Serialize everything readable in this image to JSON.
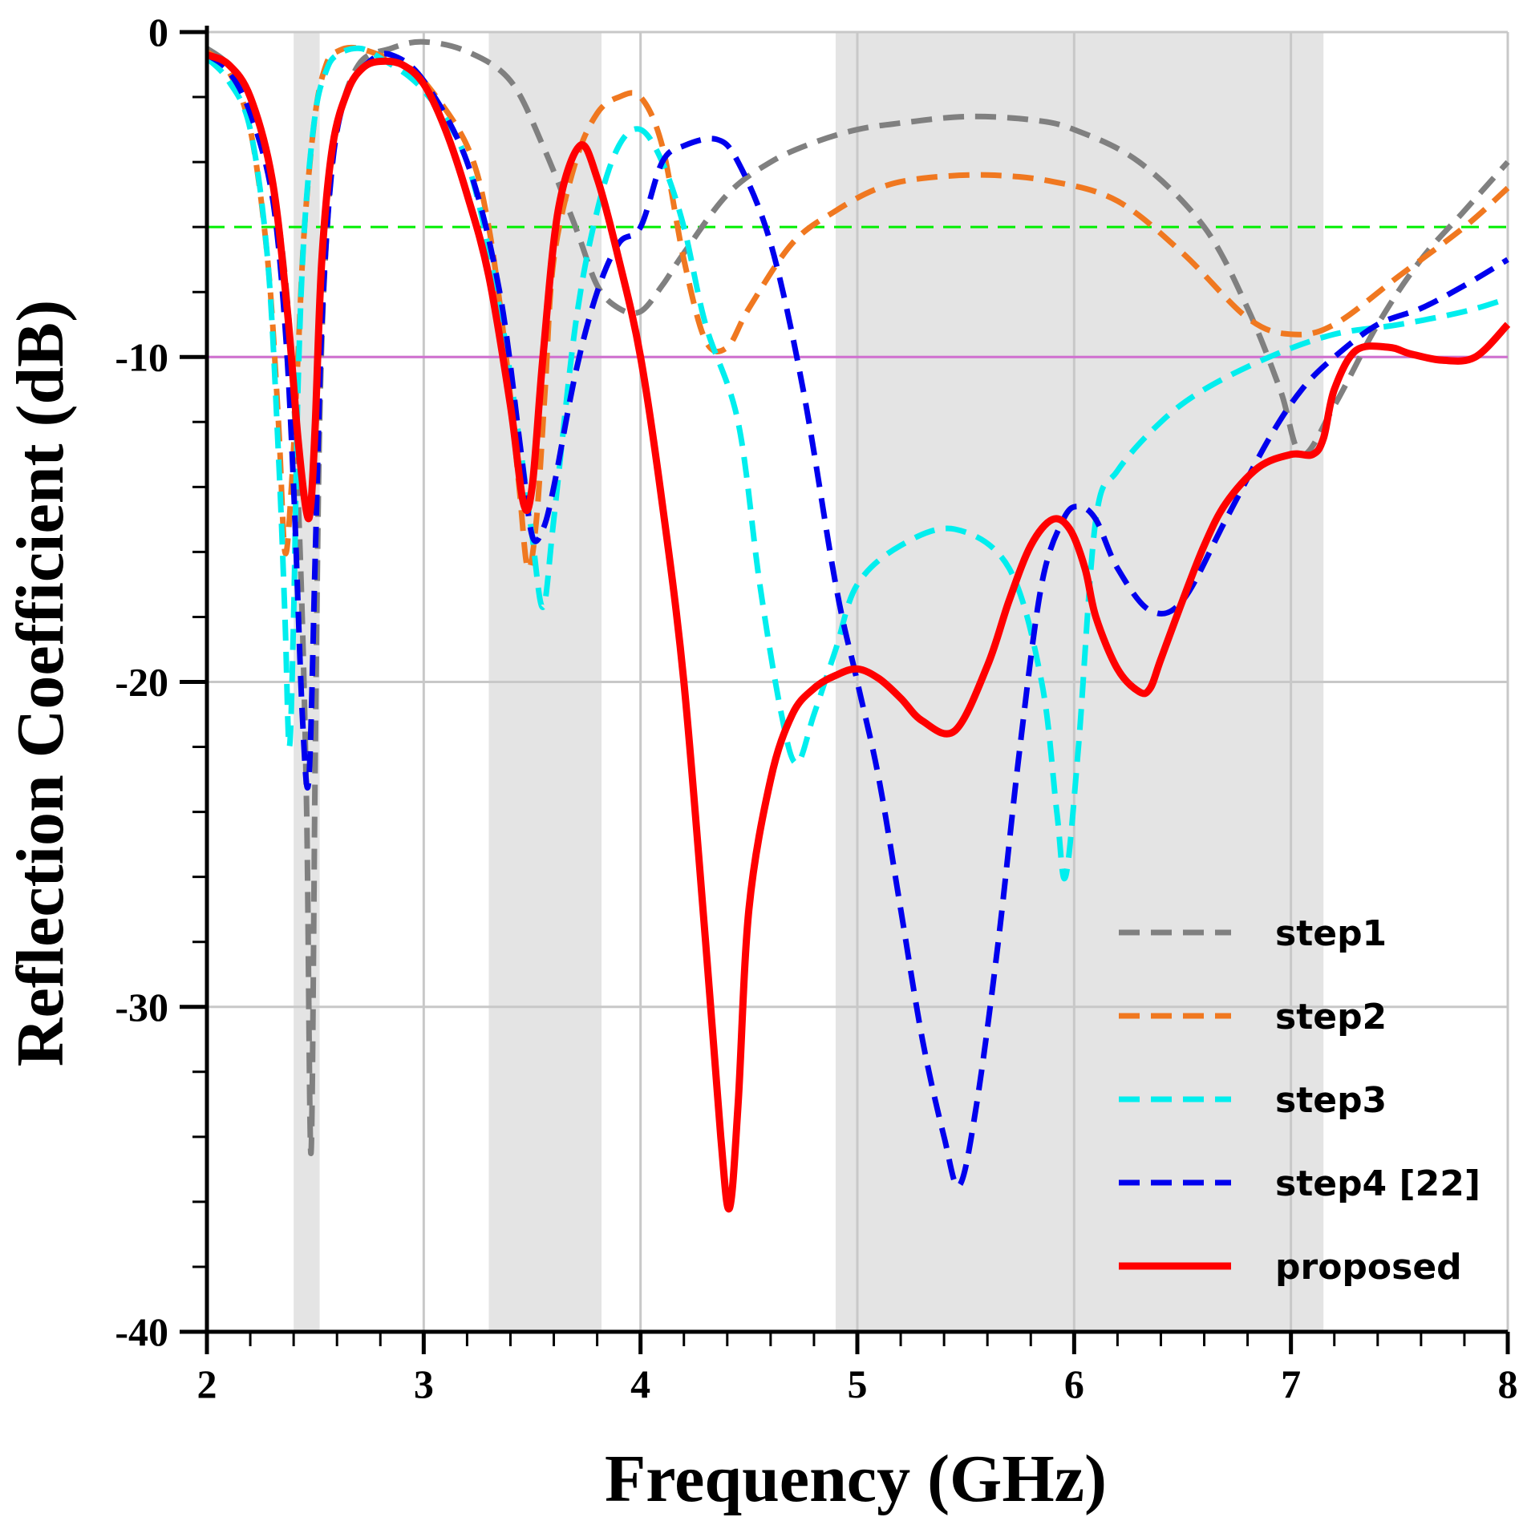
{
  "chart_data": {
    "type": "line",
    "title": "",
    "xlabel": "Frequency (GHz)",
    "ylabel": "Reflection Coefficient (dB)",
    "xlim": [
      2,
      8
    ],
    "ylim": [
      -40,
      0
    ],
    "xticks": [
      2,
      3,
      4,
      5,
      6,
      7,
      8
    ],
    "xtick_labels": [
      "2",
      "3",
      "4",
      "5",
      "6",
      "7",
      "8"
    ],
    "yticks": [
      0,
      -10,
      -20,
      -30,
      -40
    ],
    "ytick_labels": [
      "0",
      "-10",
      "-20",
      "-30",
      "-40"
    ],
    "grid": true,
    "legend_position": "bottom-right",
    "shaded_bands_ghz": [
      [
        2.4,
        2.52
      ],
      [
        3.3,
        3.82
      ],
      [
        4.9,
        7.15
      ]
    ],
    "reference_lines": [
      {
        "name": "-6 dB reference",
        "value": -6,
        "color": "#00ee00",
        "dash": true
      },
      {
        "name": "-10 dB reference",
        "value": -10,
        "color": "#d070d0",
        "dash": false
      }
    ],
    "series": [
      {
        "name": "step1",
        "color": "#808080",
        "dash": true,
        "x": [
          2.0,
          2.1,
          2.2,
          2.3,
          2.38,
          2.43,
          2.46,
          2.48,
          2.5,
          2.52,
          2.55,
          2.6,
          2.7,
          2.85,
          3.0,
          3.2,
          3.4,
          3.55,
          3.7,
          3.8,
          3.9,
          4.0,
          4.1,
          4.2,
          4.4,
          4.6,
          4.8,
          5.0,
          5.2,
          5.5,
          5.8,
          6.0,
          6.3,
          6.6,
          6.8,
          6.95,
          7.05,
          7.2,
          7.4,
          7.6,
          7.8,
          8.0
        ],
        "y": [
          -0.5,
          -1.0,
          -2.0,
          -4.5,
          -9.0,
          -16.0,
          -24.0,
          -34.5,
          -22.0,
          -12.0,
          -6.5,
          -3.0,
          -1.0,
          -0.5,
          -0.3,
          -0.6,
          -1.5,
          -3.5,
          -6.0,
          -7.8,
          -8.5,
          -8.6,
          -7.8,
          -6.8,
          -5.0,
          -4.0,
          -3.4,
          -3.0,
          -2.8,
          -2.6,
          -2.7,
          -3.0,
          -4.0,
          -6.0,
          -8.5,
          -11.0,
          -13.0,
          -11.5,
          -9.0,
          -7.0,
          -5.5,
          -4.0
        ]
      },
      {
        "name": "step2",
        "color": "#f07820",
        "dash": true,
        "x": [
          2.0,
          2.1,
          2.2,
          2.28,
          2.33,
          2.36,
          2.39,
          2.42,
          2.45,
          2.5,
          2.55,
          2.6,
          2.7,
          2.9,
          3.0,
          3.2,
          3.3,
          3.38,
          3.44,
          3.48,
          3.52,
          3.56,
          3.6,
          3.7,
          3.8,
          3.9,
          4.0,
          4.1,
          4.2,
          4.3,
          4.4,
          4.5,
          4.7,
          4.9,
          5.1,
          5.3,
          5.6,
          5.9,
          6.2,
          6.5,
          6.8,
          7.0,
          7.2,
          7.5,
          7.8,
          8.0
        ],
        "y": [
          -0.6,
          -1.2,
          -3.0,
          -7.0,
          -12.0,
          -16.0,
          -14.0,
          -10.0,
          -6.0,
          -2.5,
          -1.0,
          -0.6,
          -0.5,
          -1.0,
          -1.5,
          -3.5,
          -6.0,
          -10.0,
          -14.0,
          -16.5,
          -15.0,
          -11.0,
          -7.0,
          -4.0,
          -2.5,
          -2.0,
          -2.0,
          -3.5,
          -7.0,
          -9.5,
          -9.7,
          -8.5,
          -6.5,
          -5.5,
          -4.8,
          -4.5,
          -4.4,
          -4.6,
          -5.2,
          -6.8,
          -8.8,
          -9.3,
          -9.0,
          -7.5,
          -6.0,
          -4.8
        ]
      },
      {
        "name": "step3",
        "color": "#00eeee",
        "dash": true,
        "x": [
          2.0,
          2.1,
          2.2,
          2.28,
          2.33,
          2.36,
          2.38,
          2.4,
          2.42,
          2.45,
          2.5,
          2.55,
          2.6,
          2.7,
          2.8,
          3.0,
          3.2,
          3.35,
          3.45,
          3.5,
          3.55,
          3.6,
          3.7,
          3.8,
          3.9,
          4.0,
          4.1,
          4.2,
          4.3,
          4.45,
          4.55,
          4.65,
          4.72,
          4.8,
          4.9,
          5.0,
          5.2,
          5.45,
          5.7,
          5.85,
          5.92,
          5.96,
          6.02,
          6.1,
          6.2,
          6.4,
          6.6,
          6.9,
          7.2,
          7.5,
          7.8,
          8.0
        ],
        "y": [
          -0.8,
          -1.5,
          -3.0,
          -7.0,
          -13.0,
          -18.0,
          -22.0,
          -18.0,
          -11.0,
          -6.0,
          -2.5,
          -1.2,
          -0.7,
          -0.5,
          -0.8,
          -1.8,
          -4.0,
          -8.5,
          -13.0,
          -15.5,
          -17.7,
          -15.0,
          -9.0,
          -5.5,
          -3.5,
          -3.0,
          -4.0,
          -6.0,
          -9.0,
          -12.0,
          -17.0,
          -21.0,
          -22.5,
          -21.0,
          -19.0,
          -17.0,
          -15.8,
          -15.3,
          -16.5,
          -20.0,
          -24.0,
          -26.0,
          -22.0,
          -15.0,
          -13.5,
          -12.0,
          -11.0,
          -10.0,
          -9.3,
          -9.0,
          -8.6,
          -8.2
        ]
      },
      {
        "name": "step4 [22]",
        "color": "#0000ee",
        "dash": true,
        "x": [
          2.0,
          2.1,
          2.2,
          2.3,
          2.36,
          2.4,
          2.44,
          2.47,
          2.5,
          2.53,
          2.58,
          2.65,
          2.75,
          2.85,
          3.0,
          3.2,
          3.35,
          3.45,
          3.5,
          3.55,
          3.6,
          3.7,
          3.8,
          3.9,
          4.0,
          4.1,
          4.2,
          4.35,
          4.45,
          4.6,
          4.75,
          4.9,
          5.0,
          5.1,
          5.2,
          5.3,
          5.4,
          5.47,
          5.55,
          5.65,
          5.75,
          5.85,
          5.95,
          6.02,
          6.1,
          6.2,
          6.35,
          6.5,
          6.7,
          6.9,
          7.05,
          7.2,
          7.4,
          7.6,
          7.8,
          8.0
        ],
        "y": [
          -0.7,
          -1.2,
          -2.5,
          -5.0,
          -9.0,
          -14.0,
          -21.0,
          -23.0,
          -16.0,
          -9.0,
          -4.0,
          -1.8,
          -0.9,
          -0.7,
          -1.5,
          -4.0,
          -8.0,
          -13.0,
          -15.5,
          -15.3,
          -14.0,
          -10.5,
          -8.0,
          -6.5,
          -6.0,
          -4.0,
          -3.5,
          -3.3,
          -4.0,
          -6.5,
          -11.0,
          -17.0,
          -20.0,
          -23.0,
          -27.0,
          -31.0,
          -34.0,
          -35.5,
          -33.0,
          -28.0,
          -22.0,
          -17.0,
          -15.0,
          -14.6,
          -15.0,
          -16.5,
          -17.8,
          -17.5,
          -15.0,
          -12.5,
          -11.0,
          -10.0,
          -9.0,
          -8.5,
          -7.8,
          -7.0
        ]
      },
      {
        "name": "proposed",
        "color": "#ff0000",
        "dash": false,
        "x": [
          2.0,
          2.1,
          2.2,
          2.3,
          2.37,
          2.42,
          2.46,
          2.48,
          2.5,
          2.53,
          2.58,
          2.65,
          2.72,
          2.8,
          2.9,
          3.0,
          3.1,
          3.2,
          3.3,
          3.4,
          3.46,
          3.5,
          3.55,
          3.62,
          3.72,
          3.8,
          3.9,
          4.0,
          4.1,
          4.2,
          4.3,
          4.37,
          4.41,
          4.45,
          4.5,
          4.6,
          4.7,
          4.8,
          4.9,
          5.0,
          5.1,
          5.2,
          5.3,
          5.45,
          5.6,
          5.7,
          5.8,
          5.9,
          5.98,
          6.05,
          6.1,
          6.2,
          6.3,
          6.35,
          6.4,
          6.5,
          6.6,
          6.7,
          6.85,
          7.0,
          7.1,
          7.15,
          7.2,
          7.3,
          7.45,
          7.55,
          7.7,
          7.85,
          8.0
        ],
        "y": [
          -0.7,
          -1.0,
          -2.0,
          -4.5,
          -8.5,
          -12.5,
          -14.8,
          -14.5,
          -12.0,
          -7.0,
          -3.5,
          -1.8,
          -1.1,
          -0.9,
          -1.0,
          -1.6,
          -3.0,
          -5.0,
          -7.5,
          -11.5,
          -14.5,
          -14.0,
          -10.0,
          -5.5,
          -3.5,
          -4.5,
          -7.0,
          -10.0,
          -14.5,
          -20.0,
          -28.0,
          -34.0,
          -36.2,
          -33.0,
          -27.0,
          -23.0,
          -21.0,
          -20.2,
          -19.8,
          -19.6,
          -19.9,
          -20.5,
          -21.2,
          -21.5,
          -19.5,
          -17.5,
          -15.8,
          -15.0,
          -15.3,
          -16.5,
          -18.0,
          -19.6,
          -20.3,
          -20.2,
          -19.3,
          -17.5,
          -15.8,
          -14.5,
          -13.4,
          -13.0,
          -13.0,
          -12.5,
          -11.0,
          -9.8,
          -9.7,
          -9.9,
          -10.1,
          -10.0,
          -9.0
        ]
      }
    ]
  }
}
